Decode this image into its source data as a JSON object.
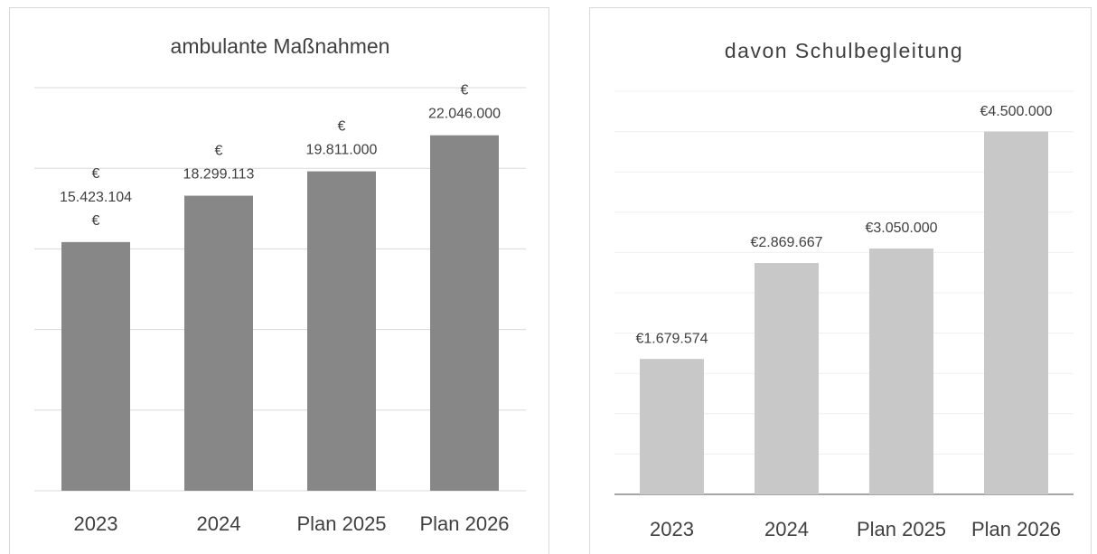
{
  "chart_data": [
    {
      "type": "bar",
      "title": "ambulante Maßnahmen",
      "categories": [
        "2023",
        "2024",
        "Plan 2025",
        "Plan 2026"
      ],
      "values": [
        15423104,
        18299113,
        19811000,
        22046000
      ],
      "value_labels": [
        "€ 15.423.104 €",
        "€ 18.299.113",
        "€ 19.811.000",
        "€ 22.046.000"
      ],
      "color": "#878787",
      "ylim": [
        0,
        25000000
      ],
      "yticks": [
        0,
        5000000,
        10000000,
        15000000,
        20000000,
        25000000
      ],
      "grid": true
    },
    {
      "type": "bar",
      "title": "davon Schulbegleitung",
      "categories": [
        "2023",
        "2024",
        "Plan 2025",
        "Plan 2026"
      ],
      "values": [
        1679574,
        2869667,
        3050000,
        4500000
      ],
      "value_labels": [
        "€1.679.574",
        "€2.869.667",
        "€3.050.000",
        "€4.500.000"
      ],
      "color": "#c8c8c8",
      "ylim": [
        0,
        5000000
      ],
      "yticks": [
        0,
        500000,
        1000000,
        1500000,
        2000000,
        2500000,
        3000000,
        3500000,
        4000000,
        4500000,
        5000000
      ],
      "grid": true
    }
  ]
}
